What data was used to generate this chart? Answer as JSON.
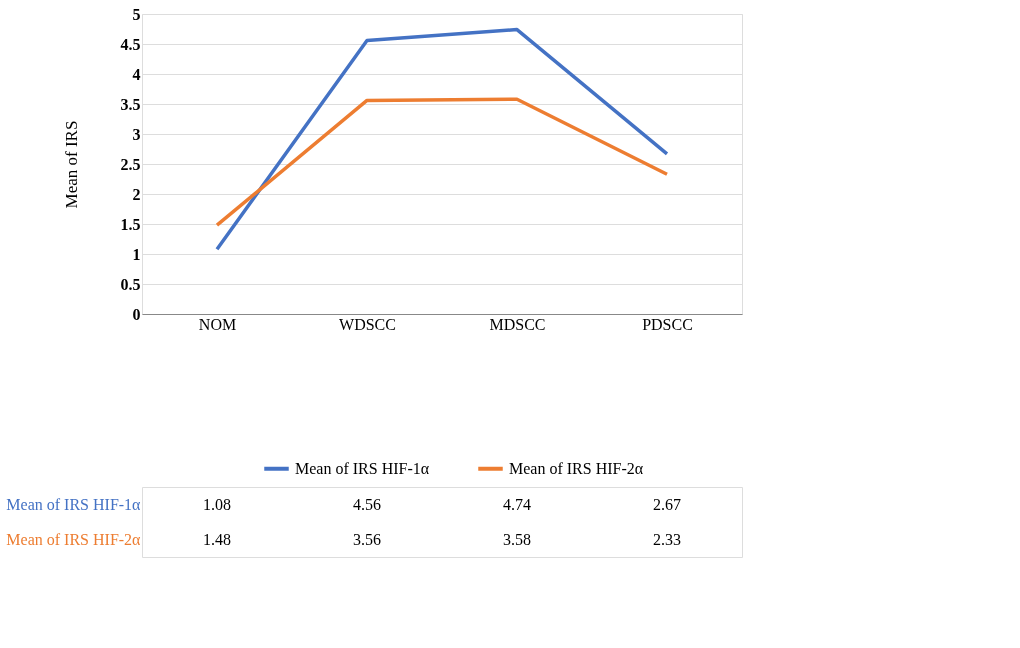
{
  "chart_data": {
    "type": "line",
    "ylabel": "Mean of IRS",
    "categories": [
      "NOM",
      "WDSCC",
      "MDSCC",
      "PDSCC"
    ],
    "series": [
      {
        "name": "Mean of IRS HIF-1α",
        "color": "#4472c4",
        "values": [
          1.08,
          4.56,
          4.74,
          2.67
        ]
      },
      {
        "name": "Mean of IRS HIF-2α",
        "color": "#ed7d31",
        "values": [
          1.48,
          3.56,
          3.58,
          2.33
        ]
      }
    ],
    "ylim": [
      0,
      5
    ],
    "yticks": [
      0,
      0.5,
      1,
      1.5,
      2,
      2.5,
      3,
      3.5,
      4,
      4.5,
      5
    ],
    "grid": "y",
    "legend": "bottom",
    "data_labels": true,
    "line_style": "solid",
    "marker": "none"
  }
}
